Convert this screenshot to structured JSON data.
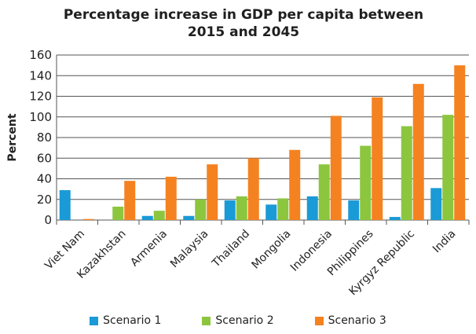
{
  "chart_data": {
    "type": "bar",
    "title": "Percentage increase in GDP per capita between 2015 and 2045",
    "title_lines": [
      "Percentage increase in GDP per capita between",
      "2015 and 2045"
    ],
    "xlabel": "",
    "ylabel": "Percent",
    "ylim": [
      0,
      160
    ],
    "yticks": [
      0,
      20,
      40,
      60,
      80,
      100,
      120,
      140,
      160
    ],
    "grid": true,
    "legend_position": "bottom",
    "categories": [
      "Viet Nam",
      "Kazakhstan",
      "Armenia",
      "Malaysia",
      "Thailand",
      "Mongolia",
      "Indonesia",
      "Philippines",
      "Kyrgyz Republic",
      "India"
    ],
    "series": [
      {
        "name": "Scenario 1",
        "color": "#1a9ad6",
        "values": [
          29,
          0,
          4,
          4,
          19,
          15,
          23,
          19,
          3,
          31
        ]
      },
      {
        "name": "Scenario 2",
        "color": "#8cc63f",
        "values": [
          0,
          13,
          9,
          20,
          23,
          21,
          54,
          72,
          91,
          102
        ]
      },
      {
        "name": "Scenario 3",
        "color": "#f58220",
        "values": [
          1,
          38,
          42,
          54,
          60,
          68,
          101,
          119,
          132,
          150
        ]
      }
    ]
  }
}
